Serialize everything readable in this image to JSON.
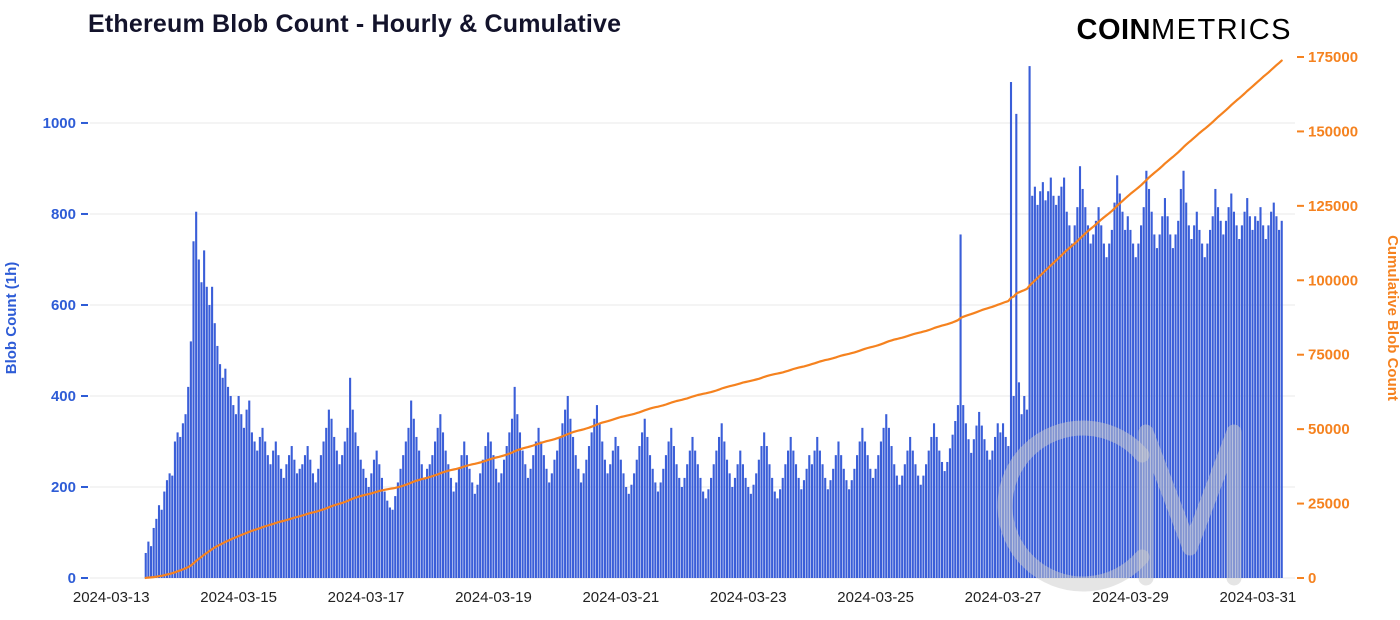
{
  "title": "Ethereum Blob Count - Hourly & Cumulative",
  "logo": {
    "bold": "COIN",
    "light": "METRICS"
  },
  "watermark": "CM",
  "colors": {
    "bar": "#3a5ed8",
    "line": "#f5821f",
    "left_axis": "#2e5cd6",
    "right_axis": "#f5821f",
    "grid": "#e8e8e8",
    "title": "#13132b",
    "x_label": "#222222",
    "watermark": "#cccccc"
  },
  "chart_data": {
    "type": "bar+line",
    "title": "Ethereum Blob Count - Hourly & Cumulative",
    "x_tick_labels": [
      "2024-03-13",
      "2024-03-15",
      "2024-03-17",
      "2024-03-19",
      "2024-03-21",
      "2024-03-23",
      "2024-03-25",
      "2024-03-27",
      "2024-03-29",
      "2024-03-31"
    ],
    "x_tick_hour_offsets": [
      0,
      48,
      96,
      144,
      192,
      240,
      288,
      336,
      384,
      432
    ],
    "start_hour_offset": 13,
    "left_axis": {
      "title": "Blob Count (1h)",
      "ticks": [
        0,
        200,
        400,
        600,
        800,
        1000
      ],
      "max": 1145
    },
    "right_axis": {
      "title": "Cumulative Blob Count",
      "ticks": [
        0,
        25000,
        50000,
        75000,
        100000,
        125000,
        150000,
        175000
      ],
      "max": 175000
    },
    "grid": "horizontal-on",
    "legend": "none",
    "series": [
      {
        "name": "Hourly Blob Count",
        "type": "bar",
        "axis": "left",
        "values": [
          55,
          80,
          70,
          110,
          130,
          160,
          150,
          190,
          215,
          230,
          225,
          300,
          320,
          310,
          340,
          360,
          420,
          520,
          740,
          805,
          700,
          650,
          720,
          640,
          600,
          640,
          560,
          510,
          470,
          440,
          460,
          420,
          400,
          380,
          360,
          400,
          360,
          330,
          370,
          390,
          320,
          300,
          280,
          310,
          330,
          300,
          270,
          250,
          280,
          300,
          270,
          240,
          220,
          250,
          270,
          290,
          260,
          230,
          240,
          250,
          270,
          290,
          260,
          230,
          210,
          240,
          270,
          300,
          330,
          370,
          350,
          310,
          280,
          250,
          270,
          300,
          330,
          440,
          370,
          320,
          290,
          260,
          240,
          220,
          200,
          230,
          260,
          280,
          250,
          220,
          190,
          170,
          155,
          150,
          180,
          210,
          240,
          270,
          300,
          330,
          390,
          350,
          310,
          280,
          250,
          220,
          240,
          250,
          270,
          300,
          330,
          360,
          320,
          280,
          250,
          220,
          190,
          210,
          240,
          270,
          300,
          270,
          240,
          210,
          185,
          205,
          230,
          260,
          290,
          320,
          300,
          270,
          240,
          210,
          230,
          260,
          290,
          320,
          350,
          420,
          360,
          320,
          280,
          250,
          220,
          240,
          270,
          300,
          330,
          300,
          270,
          240,
          210,
          230,
          260,
          280,
          310,
          340,
          370,
          400,
          350,
          310,
          270,
          240,
          210,
          230,
          260,
          290,
          320,
          350,
          380,
          340,
          300,
          260,
          230,
          250,
          280,
          310,
          290,
          260,
          230,
          200,
          185,
          205,
          230,
          260,
          290,
          320,
          350,
          310,
          270,
          240,
          210,
          190,
          210,
          240,
          270,
          300,
          330,
          290,
          250,
          220,
          200,
          220,
          250,
          280,
          310,
          280,
          250,
          220,
          190,
          175,
          195,
          220,
          250,
          280,
          310,
          340,
          300,
          260,
          230,
          200,
          220,
          250,
          280,
          250,
          220,
          200,
          185,
          205,
          230,
          260,
          290,
          320,
          290,
          250,
          220,
          190,
          175,
          195,
          220,
          250,
          280,
          310,
          280,
          250,
          220,
          195,
          215,
          240,
          270,
          250,
          280,
          310,
          280,
          250,
          220,
          195,
          215,
          240,
          270,
          300,
          270,
          240,
          215,
          195,
          215,
          240,
          270,
          300,
          330,
          300,
          270,
          240,
          220,
          240,
          270,
          300,
          330,
          360,
          330,
          290,
          250,
          225,
          205,
          225,
          250,
          280,
          310,
          280,
          250,
          225,
          205,
          225,
          250,
          280,
          310,
          340,
          310,
          280,
          255,
          235,
          255,
          285,
          315,
          345,
          380,
          755,
          380,
          340,
          305,
          275,
          305,
          335,
          365,
          335,
          305,
          280,
          260,
          280,
          310,
          340,
          320,
          340,
          310,
          290,
          1090,
          400,
          1020,
          430,
          360,
          400,
          370,
          1125,
          840,
          860,
          820,
          850,
          870,
          830,
          850,
          880,
          840,
          820,
          840,
          860,
          880,
          805,
          775,
          735,
          775,
          815,
          905,
          855,
          815,
          775,
          735,
          755,
          785,
          815,
          775,
          735,
          705,
          735,
          765,
          825,
          885,
          845,
          805,
          765,
          795,
          765,
          735,
          705,
          735,
          775,
          815,
          895,
          855,
          805,
          755,
          725,
          755,
          795,
          835,
          795,
          755,
          725,
          755,
          785,
          855,
          895,
          825,
          775,
          745,
          775,
          805,
          765,
          735,
          705,
          735,
          765,
          795,
          855,
          815,
          785,
          755,
          785,
          815,
          845,
          805,
          775,
          745,
          775,
          805,
          835,
          795,
          765,
          795,
          785,
          815,
          775,
          745,
          775,
          805,
          825,
          795,
          765,
          785
        ]
      },
      {
        "name": "Cumulative Blob Count",
        "type": "line",
        "axis": "right",
        "derived": "cumulative_sum_of_hourly_bars",
        "final_value_approx": 173795
      }
    ]
  }
}
